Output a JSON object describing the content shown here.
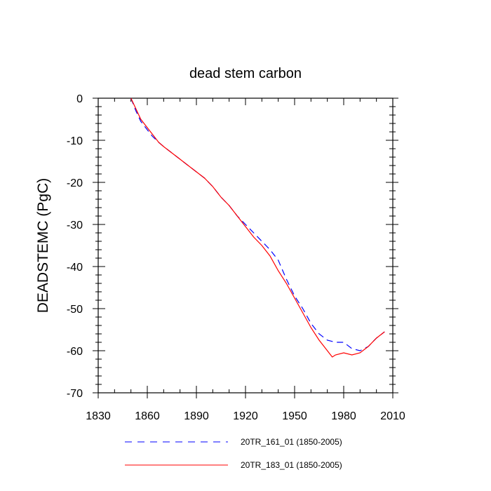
{
  "chart_data": {
    "type": "line",
    "title": "dead stem carbon",
    "xlabel": "",
    "ylabel": "DEADSTEMC  (PgC)",
    "xlim": [
      1830,
      2010
    ],
    "ylim": [
      -70,
      0
    ],
    "xticks": [
      1830,
      1860,
      1890,
      1920,
      1950,
      1980,
      2010
    ],
    "xtick_labels": [
      "1830",
      "1860",
      "1890",
      "1920",
      "1950",
      "1980",
      "2010"
    ],
    "yticks": [
      0,
      -10,
      -20,
      -30,
      -40,
      -50,
      -60,
      -70
    ],
    "ytick_labels": [
      "0",
      "-10",
      "-20",
      "-30",
      "-40",
      "-50",
      "-60",
      "-70"
    ],
    "grid": false,
    "legend_position": "bottom",
    "series": [
      {
        "name": "20TR_161_01 (1850-2005)",
        "color": "#0000ff",
        "style": "dashed",
        "x": [
          1850,
          1853,
          1856,
          1860,
          1863,
          1867,
          1870,
          1875,
          1880,
          1885,
          1890,
          1895,
          1900,
          1905,
          1910,
          1915,
          1920,
          1925,
          1930,
          1935,
          1940,
          1945,
          1950,
          1955,
          1960,
          1965,
          1970,
          1975,
          1980,
          1985,
          1990,
          1995,
          2000,
          2005
        ],
        "y": [
          0,
          -3,
          -5.5,
          -7.5,
          -9,
          -10.5,
          -11.5,
          -13,
          -14.5,
          -16,
          -17.5,
          -19,
          -21,
          -23.5,
          -25.5,
          -28,
          -30,
          -32,
          -34,
          -36,
          -38.5,
          -43,
          -47,
          -50,
          -53.5,
          -56,
          -57.5,
          -58,
          -58,
          -59.5,
          -60,
          -59,
          -57,
          -55.5
        ]
      },
      {
        "name": "20TR_183_01 (1850-2005)",
        "color": "#ff0000",
        "style": "solid",
        "x": [
          1850,
          1853,
          1856,
          1860,
          1863,
          1867,
          1870,
          1875,
          1880,
          1885,
          1890,
          1895,
          1900,
          1905,
          1910,
          1915,
          1920,
          1925,
          1930,
          1935,
          1940,
          1945,
          1950,
          1955,
          1960,
          1965,
          1970,
          1973,
          1975,
          1980,
          1985,
          1990,
          1995,
          2000,
          2005
        ],
        "y": [
          0,
          -2.5,
          -5,
          -7,
          -8.5,
          -10.5,
          -11.5,
          -13,
          -14.5,
          -16,
          -17.5,
          -19,
          -21,
          -23.5,
          -25.5,
          -28,
          -30.5,
          -33,
          -35,
          -37.5,
          -41,
          -44,
          -47.5,
          -51,
          -54.5,
          -57.5,
          -60,
          -61.5,
          -61,
          -60.5,
          -61,
          -60.5,
          -59,
          -57,
          -55.5
        ]
      }
    ]
  }
}
